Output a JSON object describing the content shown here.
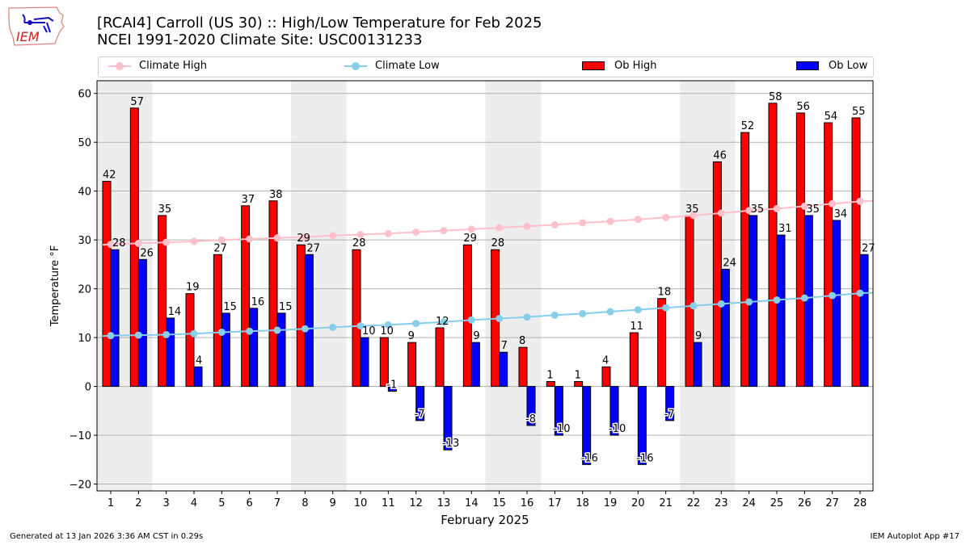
{
  "header": {
    "title_line1": "[RCAI4] Carroll (US 30) :: High/Low Temperature for Feb 2025",
    "title_line2": "NCEI 1991-2020 Climate Site: USC00131233",
    "logo_text": "IEM"
  },
  "legend": {
    "items": [
      {
        "label": "Climate High",
        "kind": "line",
        "color": "#ffc0cb"
      },
      {
        "label": "Climate Low",
        "kind": "line",
        "color": "#87ceeb"
      },
      {
        "label": "Ob High",
        "kind": "bar",
        "color": "#ff0000"
      },
      {
        "label": "Ob Low",
        "kind": "bar",
        "color": "#0000ff"
      }
    ]
  },
  "footer": {
    "generated": "Generated at 13 Jan 2026 3:36 AM CST in 0.29s",
    "app": "IEM Autoplot App #17"
  },
  "chart_data": {
    "type": "bar",
    "title": "[RCAI4] Carroll (US 30) :: High/Low Temperature for Feb 2025",
    "subtitle": "NCEI 1991-2020 Climate Site: USC00131233",
    "xlabel": "February 2025",
    "ylabel": "Temperature °F",
    "ylim": [
      -21.4,
      62.6
    ],
    "yticks": [
      -20,
      -10,
      0,
      10,
      20,
      30,
      40,
      50,
      60
    ],
    "grid": true,
    "legend_position": "top",
    "categories": [
      "1",
      "2",
      "3",
      "4",
      "5",
      "6",
      "7",
      "8",
      "9",
      "10",
      "11",
      "12",
      "13",
      "14",
      "15",
      "16",
      "17",
      "18",
      "19",
      "20",
      "21",
      "22",
      "23",
      "24",
      "25",
      "26",
      "27",
      "28"
    ],
    "weekend_shading": [
      [
        1,
        2
      ],
      [
        8,
        9
      ],
      [
        15,
        16
      ],
      [
        22,
        23
      ]
    ],
    "series": [
      {
        "name": "Ob High",
        "type": "bar",
        "color": "#ff0000",
        "values": [
          42,
          57,
          35,
          19,
          27,
          37,
          38,
          29,
          null,
          28,
          10,
          9,
          12,
          29,
          28,
          8,
          1,
          1,
          4,
          11,
          18,
          35,
          46,
          52,
          58,
          56,
          54,
          55
        ]
      },
      {
        "name": "Ob Low",
        "type": "bar",
        "color": "#0000ff",
        "values": [
          28,
          26,
          14,
          4,
          15,
          16,
          15,
          27,
          null,
          10,
          -1,
          -7,
          -13,
          9,
          7,
          -8,
          -10,
          -16,
          -10,
          -16,
          -7,
          9,
          24,
          35,
          31,
          35,
          34,
          27
        ]
      },
      {
        "name": "Climate High",
        "type": "line",
        "color": "#ffc0cb",
        "values": [
          29.1,
          29.3,
          29.5,
          29.7,
          30.0,
          30.2,
          30.4,
          30.6,
          30.9,
          31.1,
          31.3,
          31.6,
          31.9,
          32.2,
          32.5,
          32.8,
          33.1,
          33.5,
          33.8,
          34.2,
          34.6,
          35.0,
          35.5,
          36.0,
          36.4,
          36.9,
          37.4,
          37.9
        ]
      },
      {
        "name": "Climate Low",
        "type": "line",
        "color": "#87ceeb",
        "values": [
          10.4,
          10.5,
          10.6,
          10.8,
          11.1,
          11.3,
          11.5,
          11.8,
          12.1,
          12.4,
          12.6,
          12.9,
          13.2,
          13.6,
          13.9,
          14.2,
          14.6,
          14.9,
          15.3,
          15.7,
          16.1,
          16.5,
          16.9,
          17.3,
          17.7,
          18.1,
          18.6,
          19.1
        ]
      }
    ]
  }
}
